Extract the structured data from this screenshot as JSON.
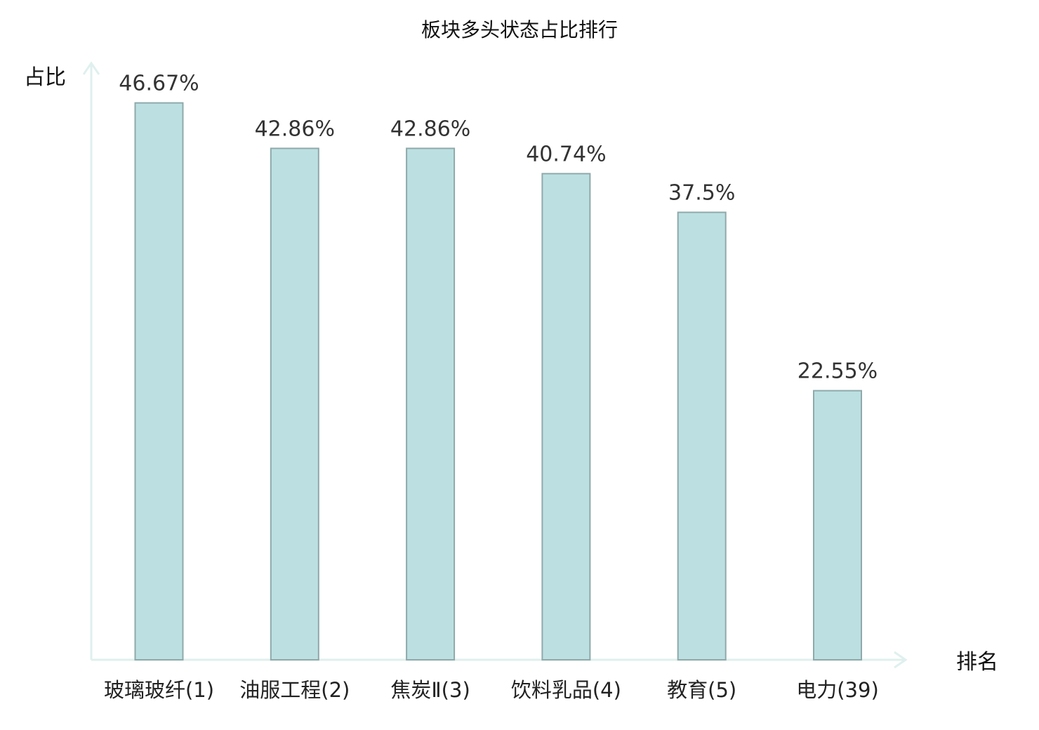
{
  "chart_data": {
    "type": "bar",
    "title": "板块多头状态占比排行",
    "ylabel": "占比",
    "xlabel": "排名",
    "categories": [
      "玻璃玻纤(1)",
      "油服工程(2)",
      "焦炭Ⅱ(3)",
      "饮料乳品(4)",
      "教育(5)",
      "电力(39)"
    ],
    "values": [
      46.67,
      42.86,
      42.86,
      40.74,
      37.5,
      22.55
    ],
    "value_labels": [
      "46.67%",
      "42.86%",
      "42.86%",
      "40.74%",
      "37.5%",
      "22.55%"
    ],
    "ylim": [
      0,
      50
    ],
    "grid": false,
    "highlight_index": 5,
    "colors": {
      "bar_fill": "#bce0e2",
      "bar_stroke": "#8fa9aa",
      "axis": "#dff0ee",
      "highlight_label": "#e0161a",
      "label": "#222222"
    }
  }
}
